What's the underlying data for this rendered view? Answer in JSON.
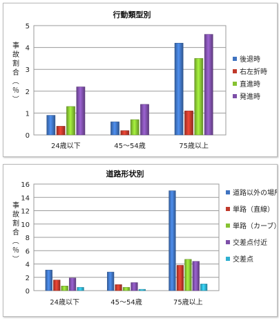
{
  "chart_data": [
    {
      "type": "bar",
      "title": "行動類型別",
      "ylabel": "事故割合（％）",
      "xlabel": "",
      "categories": [
        "24歳以下",
        "45～54歳",
        "75歳以上"
      ],
      "ylim": [
        0,
        5
      ],
      "yticks": [
        0,
        1,
        2,
        3,
        4,
        5
      ],
      "grid": true,
      "legend_position": "right",
      "series": [
        {
          "name": "後退時",
          "values": [
            0.9,
            0.6,
            4.2
          ],
          "color": "#3f73c0"
        },
        {
          "name": "右左折時",
          "values": [
            0.4,
            0.2,
            1.1
          ],
          "color": "#c0392b"
        },
        {
          "name": "直進時",
          "values": [
            1.3,
            0.7,
            3.5
          ],
          "color": "#86c232"
        },
        {
          "name": "発進時",
          "values": [
            2.2,
            1.4,
            4.6
          ],
          "color": "#7d4fa8"
        }
      ]
    },
    {
      "type": "bar",
      "title": "道路形状別",
      "ylabel": "事故割合（％）",
      "xlabel": "",
      "categories": [
        "24歳以下",
        "45～54歳",
        "75歳以上"
      ],
      "ylim": [
        0,
        16
      ],
      "yticks": [
        0,
        2,
        4,
        6,
        8,
        10,
        12,
        14,
        16
      ],
      "grid": true,
      "legend_position": "right",
      "series": [
        {
          "name": "道路以外の場所",
          "values": [
            3.1,
            2.8,
            15.0
          ],
          "color": "#3f73c0"
        },
        {
          "name": "単路（直線）",
          "values": [
            1.6,
            0.9,
            3.8
          ],
          "color": "#c0392b"
        },
        {
          "name": "単路（カーブ）",
          "values": [
            0.7,
            0.5,
            4.7
          ],
          "color": "#86c232"
        },
        {
          "name": "交差点付近",
          "values": [
            1.9,
            1.2,
            4.4
          ],
          "color": "#7d4fa8"
        },
        {
          "name": "交差点",
          "values": [
            0.5,
            0.2,
            1.0
          ],
          "color": "#2fb0d0"
        }
      ]
    }
  ]
}
